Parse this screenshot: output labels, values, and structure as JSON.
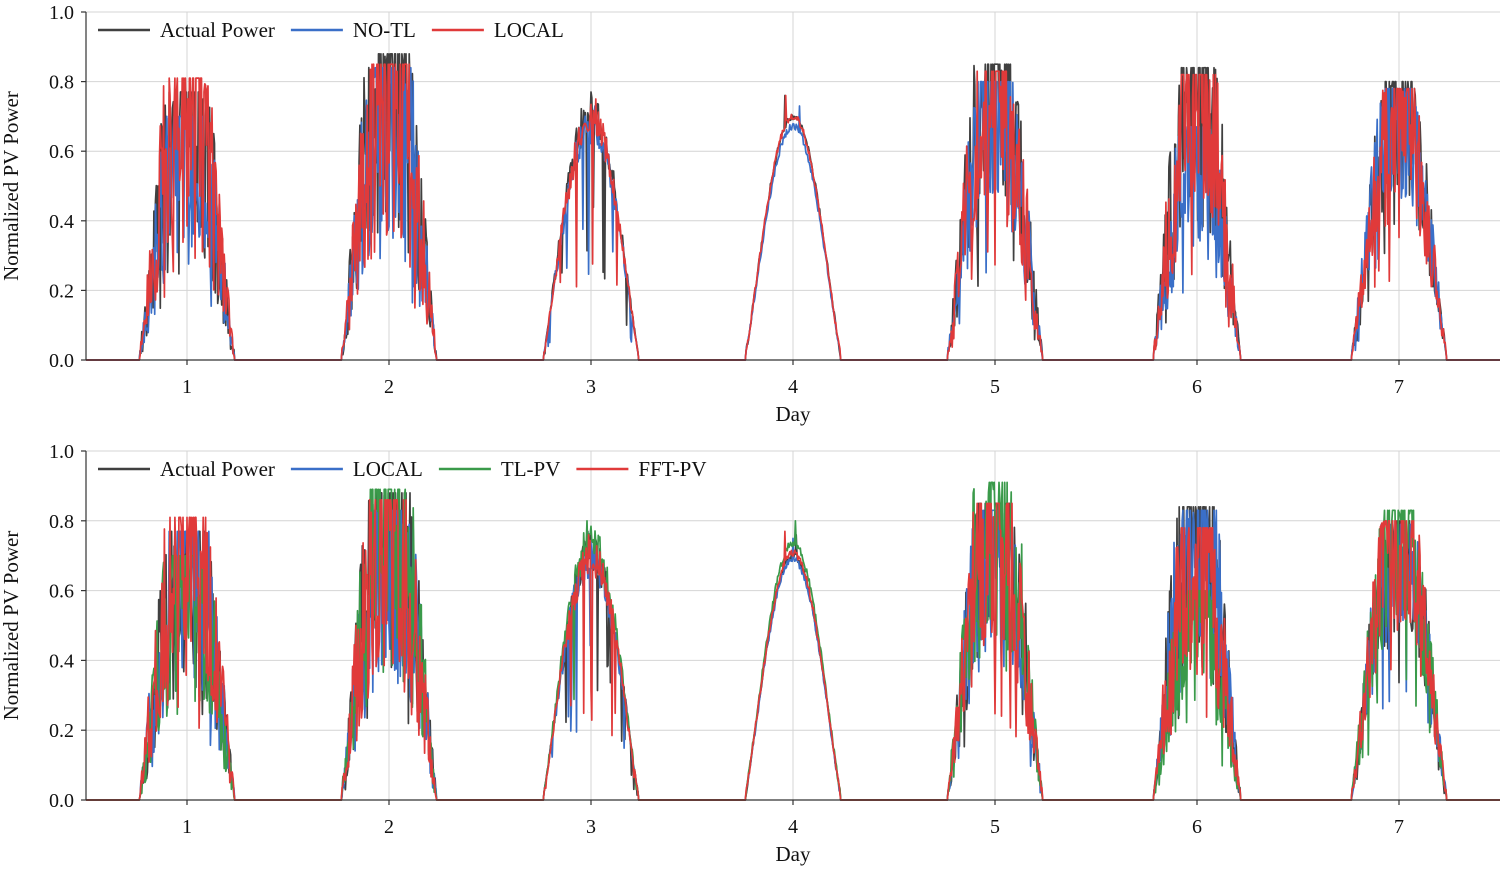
{
  "chart_data": [
    {
      "type": "line",
      "xlabel": "Day",
      "ylabel": "Normalized PV Power",
      "xlim": [
        0.5,
        7.5
      ],
      "ylim": [
        0.0,
        1.0
      ],
      "x_ticks": [
        "1",
        "2",
        "3",
        "4",
        "5",
        "6",
        "7"
      ],
      "y_ticks": [
        "0.0",
        "0.2",
        "0.4",
        "0.6",
        "0.8",
        "1.0"
      ],
      "grid": true,
      "legend_position": "top-left",
      "series": [
        {
          "name": "Actual Power",
          "color": "#404040",
          "day_peaks": [
            0.77,
            0.88,
            0.77,
            0.76,
            0.85,
            0.84,
            0.8
          ]
        },
        {
          "name": "NO-TL",
          "color": "#3a6fc8",
          "day_peaks": [
            0.7,
            0.84,
            0.73,
            0.73,
            0.8,
            0.67,
            0.78
          ]
        },
        {
          "name": "LOCAL",
          "color": "#e03a3a",
          "day_peaks": [
            0.81,
            0.85,
            0.75,
            0.76,
            0.83,
            0.82,
            0.78
          ]
        }
      ]
    },
    {
      "type": "line",
      "xlabel": "Day",
      "ylabel": "Normalized PV Power",
      "xlim": [
        0.5,
        7.5
      ],
      "ylim": [
        0.0,
        1.0
      ],
      "x_ticks": [
        "1",
        "2",
        "3",
        "4",
        "5",
        "6",
        "7"
      ],
      "y_ticks": [
        "0.0",
        "0.2",
        "0.4",
        "0.6",
        "0.8",
        "1.0"
      ],
      "grid": true,
      "legend_position": "top-left",
      "series": [
        {
          "name": "Actual Power",
          "color": "#404040",
          "day_peaks": [
            0.77,
            0.88,
            0.77,
            0.76,
            0.85,
            0.84,
            0.8
          ]
        },
        {
          "name": "LOCAL",
          "color": "#3a6fc8",
          "day_peaks": [
            0.77,
            0.83,
            0.75,
            0.75,
            0.83,
            0.83,
            0.79
          ]
        },
        {
          "name": "TL-PV",
          "color": "#3a9a4a",
          "day_peaks": [
            0.7,
            0.89,
            0.8,
            0.8,
            0.91,
            0.6,
            0.83
          ]
        },
        {
          "name": "FFT-PV",
          "color": "#e03a3a",
          "day_peaks": [
            0.81,
            0.86,
            0.76,
            0.77,
            0.85,
            0.78,
            0.8
          ]
        }
      ]
    }
  ]
}
